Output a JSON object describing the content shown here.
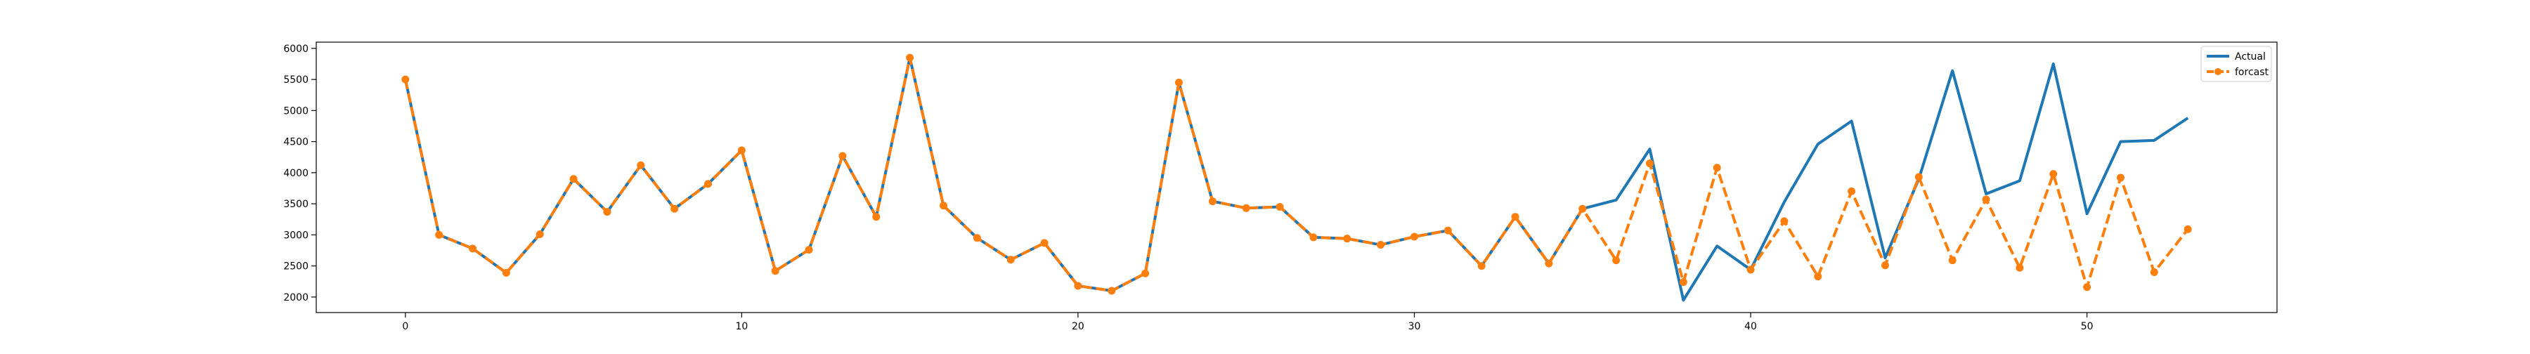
{
  "chart_data": {
    "type": "line",
    "title": "",
    "xlabel": "",
    "ylabel": "",
    "xlim": [
      -2.65,
      55.65
    ],
    "ylim": [
      1750,
      6100
    ],
    "xticks": [
      0,
      10,
      20,
      30,
      40,
      50
    ],
    "yticks": [
      2000,
      2500,
      3000,
      3500,
      4000,
      4500,
      5000,
      5500,
      6000
    ],
    "grid": false,
    "legend_position": "top-right",
    "x": [
      0,
      1,
      2,
      3,
      4,
      5,
      6,
      7,
      8,
      9,
      10,
      11,
      12,
      13,
      14,
      15,
      16,
      17,
      18,
      19,
      20,
      21,
      22,
      23,
      24,
      25,
      26,
      27,
      28,
      29,
      30,
      31,
      32,
      33,
      34,
      35,
      36,
      37,
      38,
      39,
      40,
      41,
      42,
      43,
      44,
      45,
      46,
      47,
      48,
      49,
      50,
      51,
      52,
      53
    ],
    "series": [
      {
        "name": "Actual",
        "color": "#1f77b4",
        "style": "solid",
        "marker": "none",
        "values": [
          5500,
          3000,
          2780,
          2390,
          3010,
          3900,
          3370,
          4120,
          3420,
          3820,
          4360,
          2420,
          2760,
          4270,
          3290,
          5850,
          3470,
          2950,
          2600,
          2870,
          2180,
          2100,
          2380,
          5450,
          3540,
          3430,
          3450,
          2960,
          2940,
          2840,
          2970,
          3070,
          2500,
          3290,
          2540,
          3420,
          3560,
          4380,
          1950,
          2820,
          2440,
          3530,
          4460,
          4830,
          2630,
          3900,
          5640,
          3660,
          3870,
          5750,
          3340,
          4500,
          4520,
          4880
        ]
      },
      {
        "name": "forcast",
        "color": "#ff7f0e",
        "style": "dashed",
        "marker": "circle",
        "values": [
          5500,
          3000,
          2780,
          2390,
          3010,
          3900,
          3370,
          4120,
          3420,
          3820,
          4360,
          2420,
          2760,
          4270,
          3290,
          5850,
          3470,
          2950,
          2600,
          2870,
          2180,
          2100,
          2380,
          5450,
          3540,
          3430,
          3450,
          2960,
          2940,
          2840,
          2970,
          3070,
          2500,
          3290,
          2540,
          3420,
          2590,
          4150,
          2240,
          4080,
          2440,
          3220,
          2330,
          3700,
          2510,
          3930,
          2590,
          3570,
          2470,
          3980,
          2160,
          3920,
          2400,
          3090
        ]
      }
    ]
  }
}
